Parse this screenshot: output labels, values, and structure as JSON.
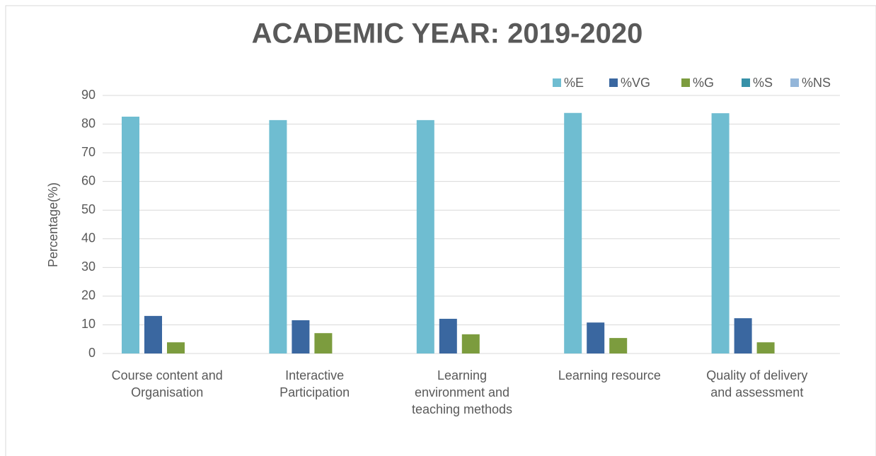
{
  "chart_data": {
    "type": "bar",
    "title": "ACADEMIC YEAR: 2019-2020",
    "y_label": "Percentage(%)",
    "categories": [
      "Course content and Organisation",
      "Interactive Participation",
      "Learning environment and teaching methods",
      "Learning resource",
      "Quality of delivery and assessment"
    ],
    "series": [
      {
        "name": "%E",
        "color": "#6fbdd1",
        "values": [
          82.6,
          81.4,
          81.4,
          83.9,
          83.8
        ]
      },
      {
        "name": "%VG",
        "color": "#3a67a0",
        "values": [
          13.1,
          11.6,
          12.1,
          10.8,
          12.3
        ]
      },
      {
        "name": "%G",
        "color": "#7c9c3e",
        "values": [
          3.9,
          7.1,
          6.7,
          5.4,
          3.9
        ]
      },
      {
        "name": "%S",
        "color": "#3791a8",
        "values": [
          0,
          0,
          0,
          0,
          0
        ]
      },
      {
        "name": "%NS",
        "color": "#94b6d9",
        "values": [
          0,
          0,
          0,
          0,
          0
        ]
      }
    ],
    "ylim": [
      0,
      90
    ],
    "yticks": [
      0,
      10,
      20,
      30,
      40,
      50,
      60,
      70,
      80,
      90
    ],
    "grid": true,
    "legend": "top-right"
  }
}
